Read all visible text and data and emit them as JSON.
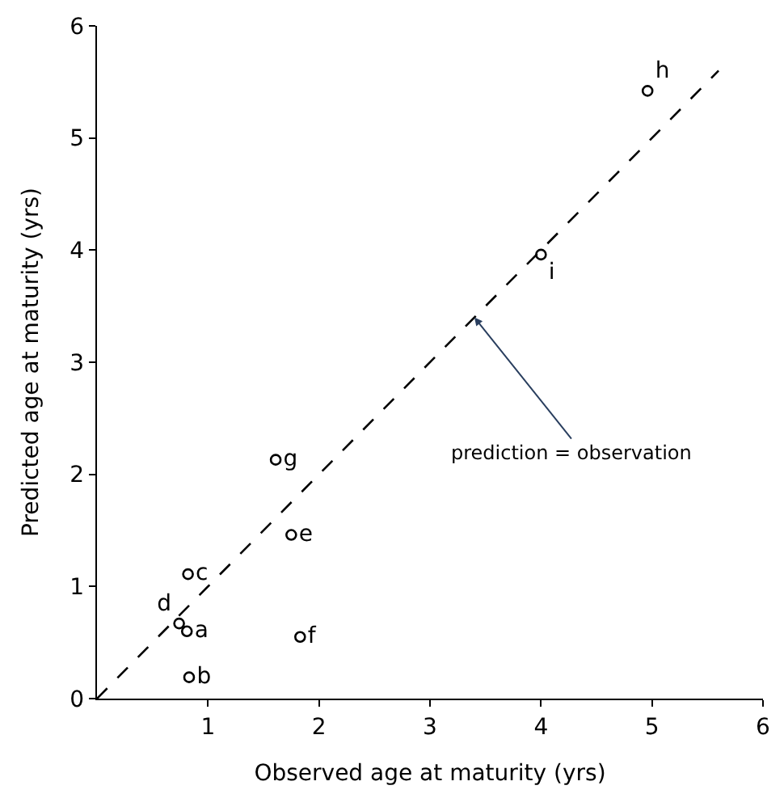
{
  "chart_data": {
    "type": "scatter",
    "xlabel": "Observed age at maturity (yrs)",
    "ylabel": "Predicted age at maturity (yrs)",
    "xlim": [
      0,
      6
    ],
    "ylim": [
      0,
      6
    ],
    "xticks": [
      1,
      2,
      3,
      4,
      5,
      6
    ],
    "yticks": [
      0,
      1,
      2,
      3,
      4,
      5,
      6
    ],
    "marker": "circle",
    "series": [
      {
        "name": "a",
        "color": "#000000",
        "x": [
          0.81
        ],
        "values": [
          0.6
        ]
      },
      {
        "name": "b",
        "color": "#000000",
        "x": [
          0.83
        ],
        "values": [
          0.19
        ]
      },
      {
        "name": "c",
        "color": "#000000",
        "x": [
          0.82
        ],
        "values": [
          1.11
        ]
      },
      {
        "name": "d",
        "color": "#000000",
        "x": [
          0.74
        ],
        "values": [
          0.67
        ]
      },
      {
        "name": "e",
        "color": "#000000",
        "x": [
          1.75
        ],
        "values": [
          1.46
        ]
      },
      {
        "name": "f",
        "color": "#000000",
        "x": [
          1.83
        ],
        "values": [
          0.55
        ]
      },
      {
        "name": "g",
        "color": "#000000",
        "x": [
          1.61
        ],
        "values": [
          2.13
        ]
      },
      {
        "name": "h",
        "color": "#000000",
        "x": [
          4.96
        ],
        "values": [
          5.42
        ]
      },
      {
        "name": "i",
        "color": "#000000",
        "x": [
          4.0
        ],
        "values": [
          3.96
        ]
      },
      {
        "type": "line",
        "color": "#000000",
        "line_style": "dashed",
        "marker": "none",
        "x": [
          0,
          5.6
        ],
        "values": [
          0,
          5.6
        ]
      }
    ],
    "annotations": [
      {
        "text": "prediction = observation",
        "x": 3.4,
        "y": 3.4
      }
    ]
  }
}
